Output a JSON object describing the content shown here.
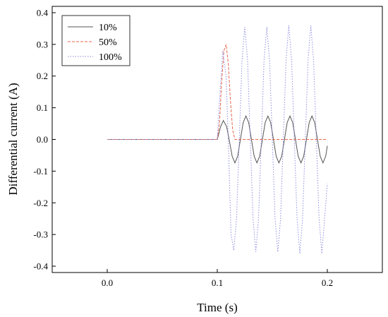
{
  "chart_data": {
    "type": "line",
    "title": "",
    "xlabel": "Time (s)",
    "ylabel": "Differential current (A)",
    "xlim": [
      -0.05,
      0.25
    ],
    "ylim": [
      -0.42,
      0.42
    ],
    "xticks": [
      0.0,
      0.1,
      0.2
    ],
    "xtick_labels": [
      "0.0",
      "0.1",
      "0.2"
    ],
    "yticks": [
      -0.4,
      -0.3,
      -0.2,
      -0.1,
      0.0,
      0.1,
      0.2,
      0.3,
      0.4
    ],
    "ytick_labels": [
      "-0.4",
      "-0.3",
      "-0.2",
      "-0.1",
      "0.0",
      "0.1",
      "0.2",
      "0.3",
      "0.4"
    ],
    "grid": false,
    "legend_position": "top-left",
    "series": [
      {
        "name": "10%",
        "color": "#555555",
        "style": "solid",
        "x": [
          0.0,
          0.1,
          0.103,
          0.1055,
          0.1085,
          0.111,
          0.1135,
          0.116,
          0.1185,
          0.121,
          0.1235,
          0.126,
          0.1285,
          0.131,
          0.1335,
          0.136,
          0.1385,
          0.141,
          0.1435,
          0.146,
          0.1485,
          0.151,
          0.1535,
          0.156,
          0.1585,
          0.161,
          0.1635,
          0.166,
          0.1685,
          0.171,
          0.1735,
          0.176,
          0.1785,
          0.181,
          0.1835,
          0.186,
          0.1885,
          0.191,
          0.1935,
          0.196,
          0.1985,
          0.2
        ],
        "y": [
          0.0,
          0.0,
          0.04,
          0.06,
          0.04,
          -0.005,
          -0.053,
          -0.074,
          -0.053,
          0.0,
          0.053,
          0.074,
          0.053,
          0.0,
          -0.053,
          -0.074,
          -0.053,
          0.0,
          0.053,
          0.074,
          0.053,
          0.0,
          -0.053,
          -0.074,
          -0.053,
          0.0,
          0.053,
          0.074,
          0.053,
          0.0,
          -0.053,
          -0.074,
          -0.053,
          0.0,
          0.053,
          0.074,
          0.053,
          0.0,
          -0.053,
          -0.074,
          -0.053,
          -0.02
        ]
      },
      {
        "name": "50%",
        "color": "#e8654d",
        "style": "dashed",
        "x": [
          0.0,
          0.1,
          0.102,
          0.104,
          0.106,
          0.108,
          0.11,
          0.112,
          0.114,
          0.116,
          0.2
        ],
        "y": [
          0.0,
          0.0,
          0.05,
          0.18,
          0.28,
          0.3,
          0.24,
          0.12,
          0.03,
          0.0,
          0.0
        ]
      },
      {
        "name": "100%",
        "color": "#8c8ce0",
        "style": "dotted",
        "x": [
          0.0,
          0.1,
          0.102,
          0.105,
          0.108,
          0.11,
          0.1125,
          0.115,
          0.1175,
          0.12,
          0.1225,
          0.125,
          0.1275,
          0.13,
          0.1325,
          0.135,
          0.1375,
          0.14,
          0.1425,
          0.145,
          0.1475,
          0.15,
          0.1525,
          0.155,
          0.1575,
          0.16,
          0.1625,
          0.165,
          0.1675,
          0.17,
          0.1725,
          0.175,
          0.1775,
          0.18,
          0.1825,
          0.185,
          0.1875,
          0.19,
          0.1925,
          0.195,
          0.1975,
          0.2
        ],
        "y": [
          0.0,
          0.0,
          0.12,
          0.28,
          0.2,
          0.0,
          -0.3,
          -0.35,
          -0.25,
          0.0,
          0.25,
          0.355,
          0.25,
          0.0,
          -0.25,
          -0.355,
          -0.25,
          0.0,
          0.25,
          0.355,
          0.25,
          0.0,
          -0.25,
          -0.355,
          -0.25,
          0.0,
          0.25,
          0.36,
          0.25,
          0.0,
          -0.25,
          -0.36,
          -0.25,
          0.0,
          0.25,
          0.36,
          0.25,
          0.0,
          -0.25,
          -0.36,
          -0.25,
          -0.14
        ]
      }
    ]
  }
}
